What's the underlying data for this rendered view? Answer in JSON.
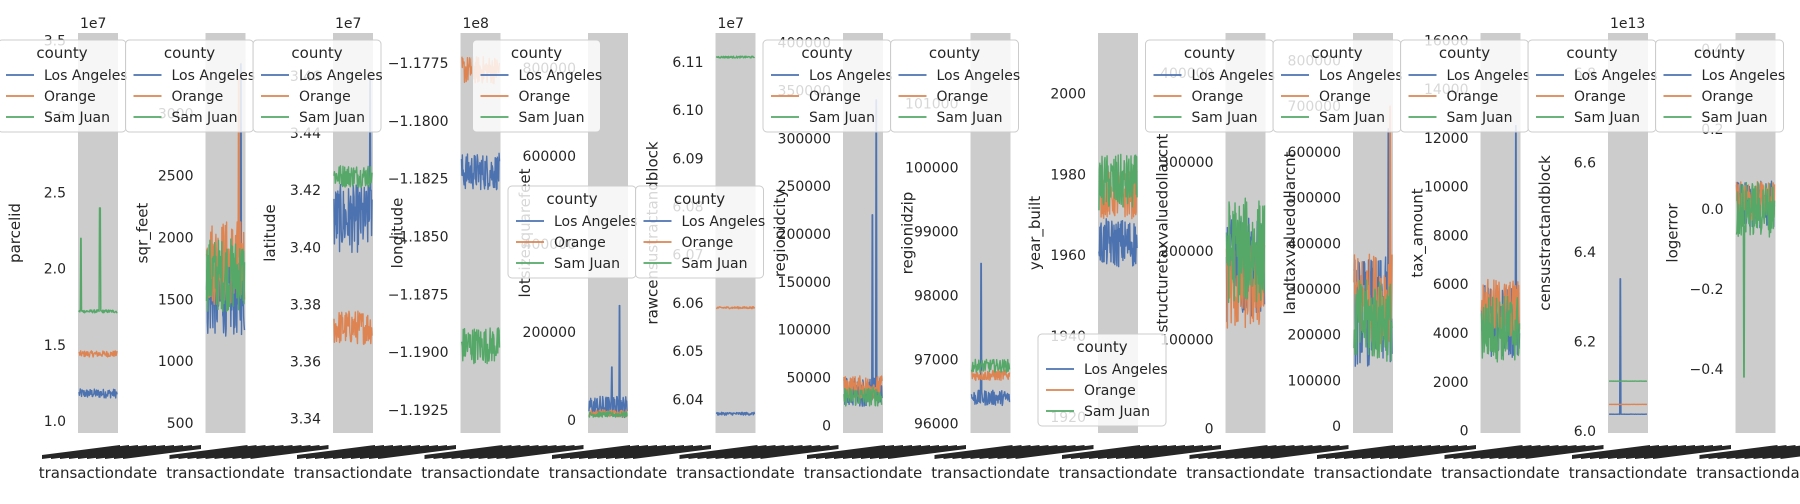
{
  "figure": {
    "legend_title": "county",
    "shared_xlabel": "transactiondate",
    "colors": {
      "Los Angeles": "#4c72b0",
      "Orange": "#dd8452",
      "Sam Juan": "#55a868"
    },
    "panel_background": "#cccccc",
    "tick_label_color": "#262626"
  },
  "chart_data": [
    {
      "type": "line",
      "ylabel": "parcelid",
      "offset": "1e7",
      "ylim": [
        0.92,
        3.55
      ],
      "yticks": [
        "1.0",
        "1.5",
        "2.0",
        "2.5",
        "3.0",
        "3.5"
      ],
      "ytick_values": [
        1.0,
        1.5,
        2.0,
        2.5,
        3.0,
        3.5
      ],
      "series": [
        {
          "name": "Los Angeles",
          "base": 1.18,
          "noise": 0.03,
          "spikes": []
        },
        {
          "name": "Orange",
          "base": 1.44,
          "noise": 0.02,
          "spikes": []
        },
        {
          "name": "Sam Juan",
          "base": 1.72,
          "noise": 0.01,
          "spikes": [
            [
              0.05,
              2.2
            ],
            [
              0.55,
              2.4
            ]
          ]
        }
      ],
      "legend": "top-left"
    },
    {
      "type": "line",
      "ylabel": "sqr_feet",
      "ylim": [
        420,
        3650
      ],
      "yticks": [
        "500",
        "1000",
        "1500",
        "2000",
        "2500",
        "3000"
      ],
      "ytick_values": [
        500,
        1000,
        1500,
        2000,
        2500,
        3000
      ],
      "series": [
        {
          "name": "Los Angeles",
          "base": 1500,
          "noise": 300,
          "spikes": [
            [
              0.9,
              3400
            ]
          ]
        },
        {
          "name": "Orange",
          "base": 1800,
          "noise": 350,
          "spikes": [
            [
              0.85,
              3300
            ]
          ]
        },
        {
          "name": "Sam Juan",
          "base": 1700,
          "noise": 300,
          "spikes": []
        }
      ],
      "legend": "top-left"
    },
    {
      "type": "line",
      "ylabel": "latitude",
      "offset": "1e7",
      "ylim": [
        3.335,
        3.475
      ],
      "yticks": [
        "3.34",
        "3.36",
        "3.38",
        "3.40",
        "3.42",
        "3.44",
        "3.46"
      ],
      "ytick_values": [
        3.34,
        3.36,
        3.38,
        3.4,
        3.42,
        3.44,
        3.46
      ],
      "series": [
        {
          "name": "Los Angeles",
          "base": 3.41,
          "noise": 0.012,
          "spikes": [
            [
              0.95,
              3.46
            ]
          ]
        },
        {
          "name": "Orange",
          "base": 3.372,
          "noise": 0.006,
          "spikes": []
        },
        {
          "name": "Sam Juan",
          "base": 3.425,
          "noise": 0.004,
          "spikes": []
        }
      ],
      "legend": "top-left"
    },
    {
      "type": "line",
      "ylabel": "longitude",
      "offset": "1e8",
      "ylim": [
        -1.1935,
        -1.1762
      ],
      "yticks": [
        "−1.1925",
        "−1.1900",
        "−1.1875",
        "−1.1850",
        "−1.1825",
        "−1.1800",
        "−1.1775"
      ],
      "ytick_values": [
        -1.1925,
        -1.19,
        -1.1875,
        -1.185,
        -1.1825,
        -1.18,
        -1.1775
      ],
      "series": [
        {
          "name": "Los Angeles",
          "base": -1.1822,
          "noise": 0.0008,
          "spikes": []
        },
        {
          "name": "Orange",
          "base": -1.1778,
          "noise": 0.0006,
          "spikes": []
        },
        {
          "name": "Sam Juan",
          "base": -1.1897,
          "noise": 0.0008,
          "spikes": []
        }
      ],
      "legend": "top-right"
    },
    {
      "type": "line",
      "ylabel": "lotsizesquarefeet",
      "ylim": [
        -30000,
        880000
      ],
      "yticks": [
        "0",
        "200000",
        "400000",
        "600000",
        "800000"
      ],
      "ytick_values": [
        0,
        200000,
        400000,
        600000,
        800000
      ],
      "series": [
        {
          "name": "Los Angeles",
          "base": 30000,
          "noise": 25000,
          "spikes": [
            [
              0.8,
              260000
            ],
            [
              0.6,
              120000
            ]
          ]
        },
        {
          "name": "Orange",
          "base": 15000,
          "noise": 8000,
          "spikes": []
        },
        {
          "name": "Sam Juan",
          "base": 12000,
          "noise": 6000,
          "spikes": []
        }
      ],
      "legend": "left"
    },
    {
      "type": "line",
      "ylabel": "rawcensustractandblock",
      "offset": "1e7",
      "ylim": [
        6.033,
        6.116
      ],
      "yticks": [
        "6.04",
        "6.05",
        "6.06",
        "6.07",
        "6.08",
        "6.09",
        "6.10",
        "6.11"
      ],
      "ytick_values": [
        6.04,
        6.05,
        6.06,
        6.07,
        6.08,
        6.09,
        6.1,
        6.11
      ],
      "series": [
        {
          "name": "Los Angeles",
          "base": 6.037,
          "noise": 0.0003,
          "spikes": []
        },
        {
          "name": "Orange",
          "base": 6.059,
          "noise": 0.0002,
          "spikes": []
        },
        {
          "name": "Sam Juan",
          "base": 6.111,
          "noise": 0.0002,
          "spikes": []
        }
      ],
      "legend": "left"
    },
    {
      "type": "line",
      "ylabel": "regionidcity",
      "ylim": [
        -8000,
        410000
      ],
      "yticks": [
        "0",
        "50000",
        "100000",
        "150000",
        "200000",
        "250000",
        "300000",
        "350000",
        "400000"
      ],
      "ytick_values": [
        0,
        50000,
        100000,
        150000,
        200000,
        250000,
        300000,
        350000,
        400000
      ],
      "series": [
        {
          "name": "Los Angeles",
          "base": 35000,
          "noise": 15000,
          "spikes": [
            [
              0.85,
              340000
            ],
            [
              0.75,
              220000
            ]
          ]
        },
        {
          "name": "Orange",
          "base": 40000,
          "noise": 12000,
          "spikes": []
        },
        {
          "name": "Sam Juan",
          "base": 30000,
          "noise": 10000,
          "spikes": []
        }
      ],
      "legend": "top-left"
    },
    {
      "type": "line",
      "ylabel": "regionidzip",
      "ylim": [
        95850,
        102100
      ],
      "yticks": [
        "96000",
        "97000",
        "98000",
        "99000",
        "100000",
        "101000"
      ],
      "ytick_values": [
        96000,
        97000,
        98000,
        99000,
        100000,
        101000
      ],
      "series": [
        {
          "name": "Los Angeles",
          "base": 96400,
          "noise": 120,
          "spikes": [
            [
              0.25,
              98500
            ]
          ]
        },
        {
          "name": "Orange",
          "base": 96750,
          "noise": 80,
          "spikes": []
        },
        {
          "name": "Sam Juan",
          "base": 96900,
          "noise": 100,
          "spikes": []
        }
      ],
      "legend": "top-left"
    },
    {
      "type": "line",
      "ylabel": "year_built",
      "ylim": [
        1916,
        2015
      ],
      "yticks": [
        "1920",
        "1940",
        "1960",
        "1980",
        "2000"
      ],
      "ytick_values": [
        1920,
        1940,
        1960,
        1980,
        2000
      ],
      "series": [
        {
          "name": "Los Angeles",
          "base": 1963,
          "noise": 6,
          "spikes": []
        },
        {
          "name": "Orange",
          "base": 1975,
          "noise": 6,
          "spikes": []
        },
        {
          "name": "Sam Juan",
          "base": 1978,
          "noise": 7,
          "spikes": []
        }
      ],
      "legend": "bottom-left"
    },
    {
      "type": "line",
      "ylabel": "structuretaxvaluedollarcnt",
      "ylim": [
        -5000,
        445000
      ],
      "yticks": [
        "0",
        "100000",
        "200000",
        "300000",
        "400000"
      ],
      "ytick_values": [
        0,
        100000,
        200000,
        300000,
        400000
      ],
      "series": [
        {
          "name": "Los Angeles",
          "base": 180000,
          "noise": 60000,
          "spikes": []
        },
        {
          "name": "Orange",
          "base": 160000,
          "noise": 50000,
          "spikes": []
        },
        {
          "name": "Sam Juan",
          "base": 200000,
          "noise": 60000,
          "spikes": []
        }
      ],
      "legend": "top-left"
    },
    {
      "type": "line",
      "ylabel": "landtaxvaluedollarcnt",
      "ylim": [
        -15000,
        860000
      ],
      "yticks": [
        "0",
        "100000",
        "200000",
        "300000",
        "400000",
        "500000",
        "600000",
        "700000",
        "800000"
      ],
      "ytick_values": [
        0,
        100000,
        200000,
        300000,
        400000,
        500000,
        600000,
        700000,
        800000
      ],
      "series": [
        {
          "name": "Los Angeles",
          "base": 250000,
          "noise": 120000,
          "spikes": [
            [
              0.9,
              650000
            ]
          ]
        },
        {
          "name": "Orange",
          "base": 280000,
          "noise": 100000,
          "spikes": [
            [
              0.95,
              700000
            ]
          ]
        },
        {
          "name": "Sam Juan",
          "base": 230000,
          "noise": 90000,
          "spikes": []
        }
      ],
      "legend": "top-left"
    },
    {
      "type": "line",
      "ylabel": "tax_amount",
      "ylim": [
        -100,
        16300
      ],
      "yticks": [
        "0",
        "2000",
        "4000",
        "6000",
        "8000",
        "10000",
        "12000",
        "14000",
        "16000"
      ],
      "ytick_values": [
        0,
        2000,
        4000,
        6000,
        8000,
        10000,
        12000,
        14000,
        16000
      ],
      "series": [
        {
          "name": "Los Angeles",
          "base": 4500,
          "noise": 1500,
          "spikes": [
            [
              0.9,
              12500
            ]
          ]
        },
        {
          "name": "Orange",
          "base": 5000,
          "noise": 1200,
          "spikes": []
        },
        {
          "name": "Sam Juan",
          "base": 4200,
          "noise": 1400,
          "spikes": []
        }
      ],
      "legend": "top-left"
    },
    {
      "type": "line",
      "ylabel": "censustractandblock",
      "offset": "1e13",
      "ylim": [
        5.995,
        6.89
      ],
      "yticks": [
        "6.0",
        "6.2",
        "6.4",
        "6.6",
        "6.8"
      ],
      "ytick_values": [
        6.0,
        6.2,
        6.4,
        6.6,
        6.8
      ],
      "series": [
        {
          "name": "Los Angeles",
          "base": 6.037,
          "noise": 0.0003,
          "spikes": [
            [
              0.3,
              6.34
            ]
          ]
        },
        {
          "name": "Orange",
          "base": 6.059,
          "noise": 0.0002,
          "spikes": []
        },
        {
          "name": "Sam Juan",
          "base": 6.111,
          "noise": 0.0002,
          "spikes": []
        }
      ],
      "legend": "top-left"
    },
    {
      "type": "line",
      "ylabel": "logerror",
      "ylim": [
        -0.56,
        0.44
      ],
      "yticks": [
        "−0.4",
        "−0.2",
        "0.0",
        "0.2",
        "0.4"
      ],
      "ytick_values": [
        -0.4,
        -0.2,
        0.0,
        0.2,
        0.4
      ],
      "series": [
        {
          "name": "Los Angeles",
          "base": 0.01,
          "noise": 0.06,
          "spikes": []
        },
        {
          "name": "Orange",
          "base": 0.02,
          "noise": 0.05,
          "spikes": []
        },
        {
          "name": "Sam Juan",
          "base": 0.0,
          "noise": 0.07,
          "spikes": [
            [
              0.2,
              -0.42
            ]
          ]
        }
      ],
      "legend": "top-left"
    }
  ]
}
